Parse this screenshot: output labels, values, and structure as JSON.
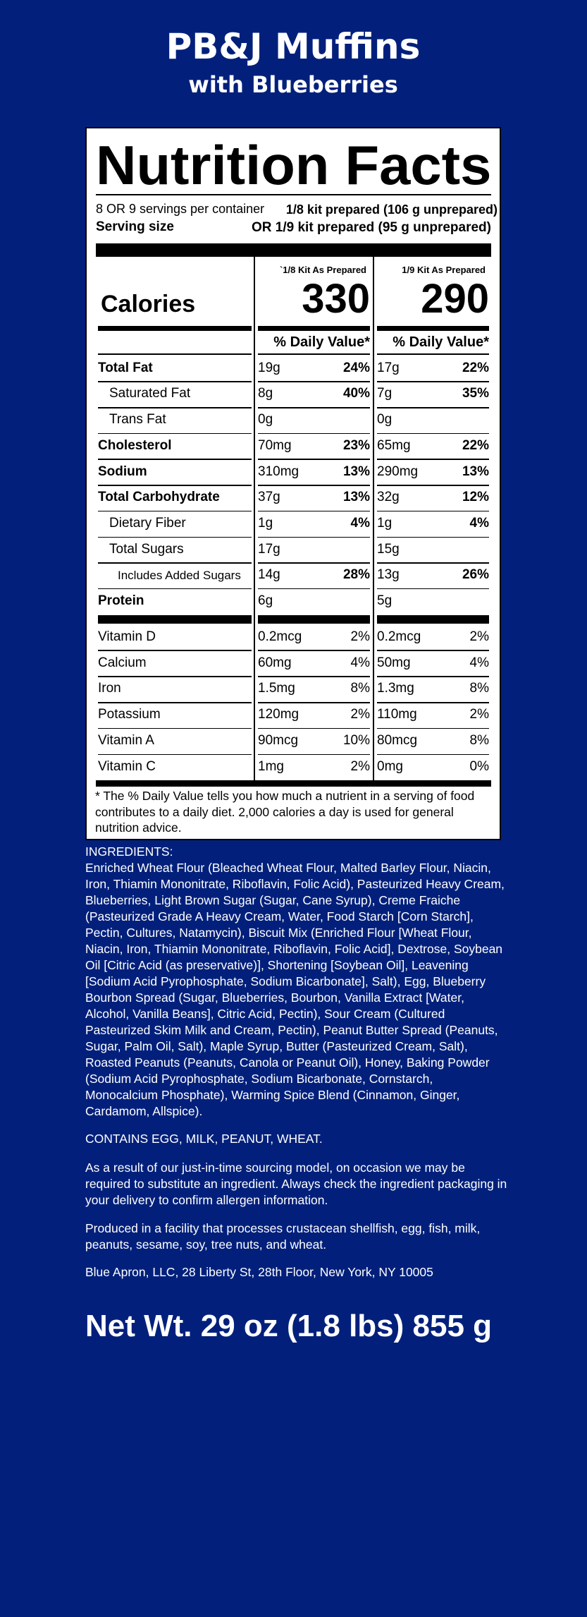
{
  "header": {
    "title": "PB&J Muffins",
    "subtitle": "with Blueberries"
  },
  "label": {
    "title": "Nutrition Facts",
    "servings": "8 OR 9 servings per container",
    "serving_size_label": "Serving size",
    "serving_size_1": "1/8 kit prepared (106 g unprepared)",
    "serving_size_2": "OR 1/9 kit prepared (95 g unprepared)",
    "calories_label": "Calories",
    "columns": [
      {
        "heading": "`1/8 Kit As Prepared",
        "calories": "330",
        "daily_value_heading": "% Daily Value*"
      },
      {
        "heading": "1/9 Kit As Prepared",
        "calories": "290",
        "daily_value_heading": "% Daily Value*"
      }
    ],
    "nutrients": [
      {
        "name": "Total Fat",
        "values": [
          [
            "19g",
            "24%"
          ],
          [
            "17g",
            "22%"
          ]
        ]
      },
      {
        "name": "Saturated Fat",
        "values": [
          [
            "8g",
            "40%"
          ],
          [
            "7g",
            "35%"
          ]
        ]
      },
      {
        "name": "Trans Fat",
        "values": [
          [
            "0g"
          ],
          [
            "0g"
          ]
        ]
      },
      {
        "name": "Cholesterol",
        "values": [
          [
            "70mg",
            "23%"
          ],
          [
            "65mg",
            "22%"
          ]
        ]
      },
      {
        "name": "Sodium",
        "values": [
          [
            "310mg",
            "13%"
          ],
          [
            "290mg",
            "13%"
          ]
        ]
      },
      {
        "name": "Total Carbohydrate",
        "values": [
          [
            "37g",
            "13%"
          ],
          [
            "32g",
            "12%"
          ]
        ]
      },
      {
        "name": "Dietary Fiber",
        "values": [
          [
            "1g",
            "4%"
          ],
          [
            "1g",
            "4%"
          ]
        ]
      },
      {
        "name": "Total Sugars",
        "values": [
          [
            "17g"
          ],
          [
            "15g"
          ]
        ]
      },
      {
        "name": "Includes Added Sugars",
        "values": [
          [
            "14g",
            "28%"
          ],
          [
            "13g",
            "26%"
          ]
        ]
      },
      {
        "name": "Protein",
        "values": [
          [
            "6g"
          ],
          [
            "5g"
          ]
        ]
      }
    ],
    "vitamins": [
      {
        "name": "Vitamin D",
        "values": [
          [
            "0.2mcg",
            "2%"
          ],
          [
            "0.2mcg",
            "2%"
          ]
        ]
      },
      {
        "name": "Calcium",
        "values": [
          [
            "60mg",
            "4%"
          ],
          [
            "50mg",
            "4%"
          ]
        ]
      },
      {
        "name": "Iron",
        "values": [
          [
            "1.5mg",
            "8%"
          ],
          [
            "1.3mg",
            "8%"
          ]
        ]
      },
      {
        "name": "Potassium",
        "values": [
          [
            "120mg",
            "2%"
          ],
          [
            "110mg",
            "2%"
          ]
        ]
      },
      {
        "name": "Vitamin A",
        "values": [
          [
            "90mcg",
            "10%"
          ],
          [
            "80mcg",
            "8%"
          ]
        ]
      },
      {
        "name": "Vitamin C",
        "values": [
          [
            "1mg",
            "2%"
          ],
          [
            "0mg",
            "0%"
          ]
        ]
      }
    ],
    "footnote": "* The % Daily Value tells you how much a nutrient in a serving of food contributes to a daily diet. 2,000 calories a day is used for general nutrition advice."
  },
  "ingredients": {
    "heading": "INGREDIENTS:",
    "text": "Enriched Wheat Flour (Bleached Wheat Flour, Malted Barley Flour, Niacin, Iron, Thiamin Mononitrate, Riboflavin, Folic Acid), Pasteurized Heavy Cream, Blueberries, Light Brown Sugar (Sugar, Cane Syrup), Creme Fraiche (Pasteurized Grade A Heavy Cream, Water, Food Starch [Corn Starch], Pectin, Cultures, Natamycin), Biscuit Mix (Enriched Flour [Wheat Flour, Niacin, Iron, Thiamin Mononitrate, Riboflavin, Folic Acid], Dextrose, Soybean Oil [Citric Acid (as preservative)], Shortening [Soybean Oil], Leavening [Sodium Acid Pyrophosphate, Sodium Bicarbonate], Salt), Egg, Blueberry Bourbon Spread (Sugar, Blueberries, Bourbon, Vanilla Extract [Water, Alcohol, Vanilla Beans], Citric Acid, Pectin), Sour Cream (Cultured Pasteurized Skim Milk and Cream, Pectin), Peanut Butter Spread (Peanuts, Sugar, Palm Oil, Salt), Maple Syrup, Butter (Pasteurized Cream, Salt), Roasted Peanuts (Peanuts, Canola or Peanut Oil), Honey, Baking Powder (Sodium Acid Pyrophosphate, Sodium Bicarbonate, Cornstarch, Monocalcium Phosphate), Warming Spice Blend (Cinnamon, Ginger, Cardamom, Allspice)."
  },
  "contains": "CONTAINS EGG, MILK, PEANUT, WHEAT.",
  "sourcing": "As a result of our just-in-time sourcing model, on occasion we may be required to substitute an ingredient. Always check the ingredient packaging in your delivery to confirm allergen information.",
  "facility": "Produced in a facility that processes crustacean shellfish, egg, fish, milk, peanuts, sesame, soy, tree nuts, and wheat.",
  "address": "Blue Apron, LLC, 28 Liberty St, 28th Floor, New York, NY 10005",
  "net_weight": "Net Wt. 29 oz (1.8 lbs) 855 g"
}
